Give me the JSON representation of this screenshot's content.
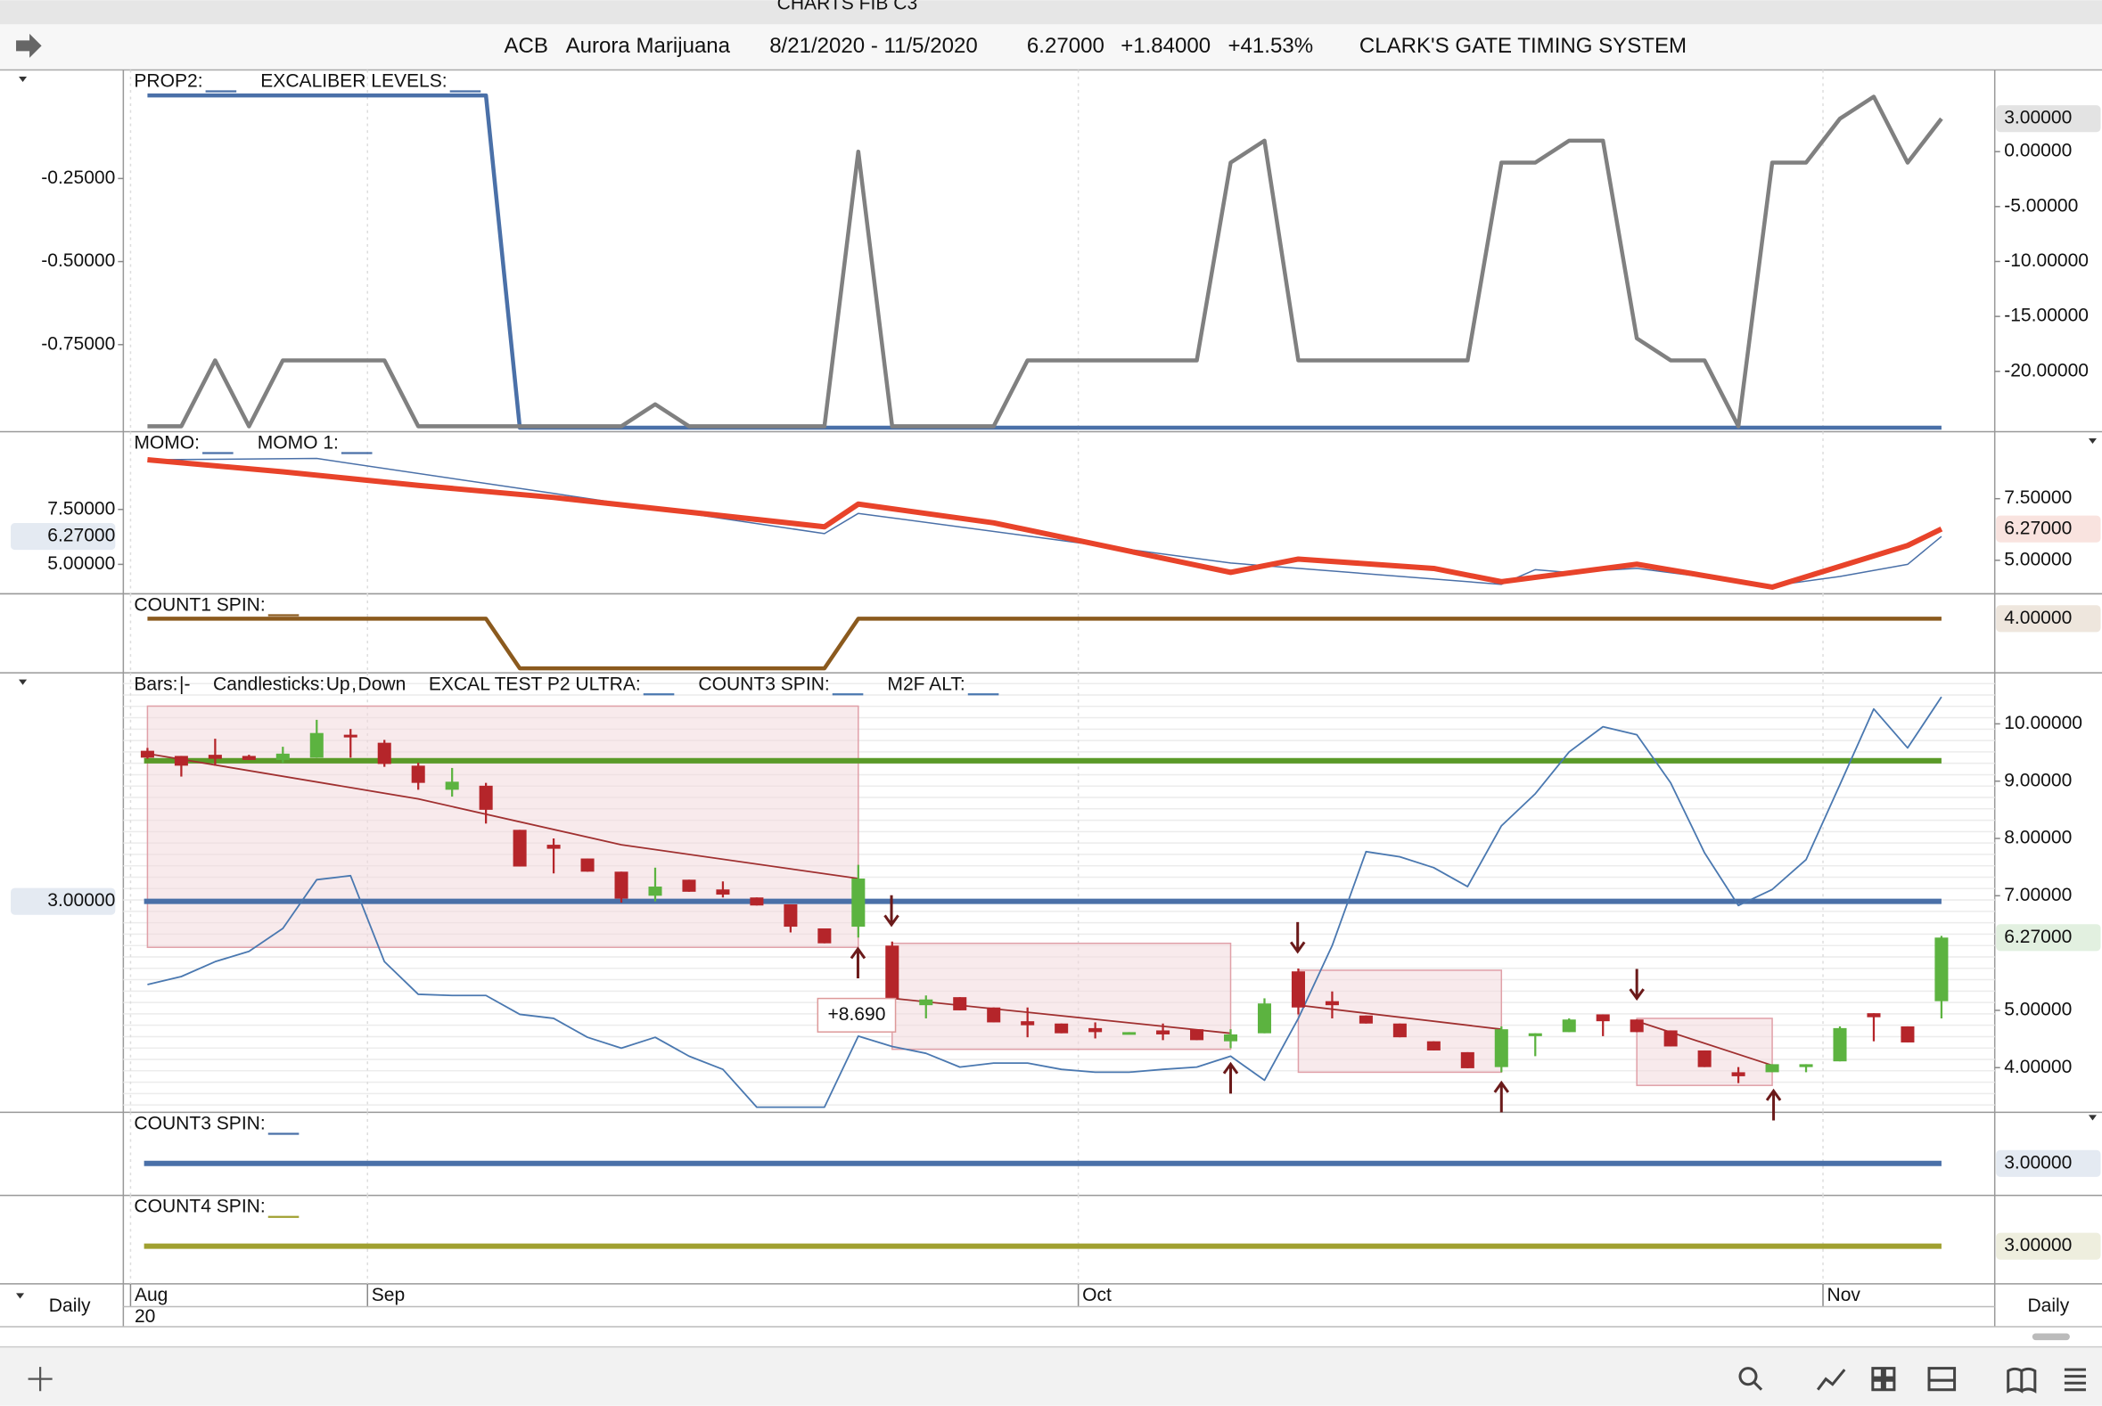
{
  "window_title": "CHARTS FIB C3",
  "header": {
    "symbol": "ACB",
    "name": "Aurora Marijuana",
    "range": "8/21/2020 - 11/5/2020",
    "last": "6.27000",
    "change": "+1.84000",
    "change_pct": "+41.53%",
    "system": "CLARK'S GATE TIMING SYSTEM"
  },
  "interval_left": "Daily",
  "interval_right": "Daily",
  "x_axis": {
    "ticks": [
      {
        "value": -0.5,
        "label": "Aug"
      },
      {
        "value": 6.5,
        "label": "Sep"
      },
      {
        "value": 27.5,
        "label": "Oct"
      },
      {
        "value": 49.5,
        "label": "Nov"
      }
    ],
    "sublabel": "20"
  },
  "panels": [
    {
      "legend": [
        {
          "parts": [
            {
              "text": "PROP2:"
            }
          ],
          "swatch": "#4a70a8"
        },
        {
          "parts": [
            {
              "text": "EXCALIBER LEVELS:"
            }
          ],
          "swatch": "#4a70a8"
        }
      ],
      "left_axis": {
        "ylim": [
          -1.012,
          0.077
        ],
        "ticks": [
          {
            "value": -0.25,
            "label": "-0.25000"
          },
          {
            "value": -0.5,
            "label": "-0.50000"
          },
          {
            "value": -0.75,
            "label": "-0.75000"
          }
        ]
      },
      "right_axis": {
        "ylim": [
          -25.49,
          7.44
        ],
        "ticks": [
          {
            "value": 0,
            "label": "0.00000"
          },
          {
            "value": -5,
            "label": "-5.00000"
          },
          {
            "value": -10,
            "label": "-10.00000"
          },
          {
            "value": -15,
            "label": "-15.00000"
          },
          {
            "value": -20,
            "label": "-20.00000"
          }
        ],
        "current": {
          "value": 3,
          "label": "3.00000",
          "color": "#444444"
        }
      },
      "series": [
        {
          "type": "line",
          "axis": "left",
          "color": "#4a70a8",
          "width": 3,
          "values": [
            0,
            0,
            0,
            0,
            0,
            0,
            0,
            0,
            0,
            0,
            0,
            -1,
            -1,
            -1,
            -1,
            -1,
            -1,
            -1,
            -1,
            -1,
            -1,
            -1,
            -1,
            -1,
            -1,
            -1,
            -1,
            -1,
            -1,
            -1,
            -1,
            -1,
            -1,
            -1,
            -1,
            -1,
            -1,
            -1,
            -1,
            -1,
            -1,
            -1,
            -1,
            -1,
            -1,
            -1,
            -1,
            -1,
            -1,
            -1,
            -1,
            -1,
            -1,
            -1
          ]
        },
        {
          "type": "line",
          "axis": "right",
          "color": "#808080",
          "width": 3,
          "values": [
            -25,
            -25,
            -19,
            -25,
            -19,
            -19,
            -19,
            -19,
            -25,
            -25,
            -25,
            -25,
            -25,
            -25,
            -25,
            -23,
            -25,
            -25,
            -25,
            -25,
            -25,
            0,
            -25,
            -25,
            -25,
            -25,
            -19,
            -19,
            -19,
            -19,
            -19,
            -19,
            -1,
            1,
            -19,
            -19,
            -19,
            -19,
            -19,
            -19,
            -1,
            -1,
            1,
            1,
            -17,
            -19,
            -19,
            -25,
            -1,
            -1,
            3,
            5,
            -1,
            3
          ]
        }
      ]
    },
    {
      "legend": [
        {
          "parts": [
            {
              "text": "MOMO:"
            }
          ],
          "swatch": "#4a70a8"
        },
        {
          "parts": [
            {
              "text": "MOMO 1:"
            }
          ],
          "swatch": "#4a70a8"
        }
      ],
      "left_axis": {
        "ylim": [
          3.66,
          11.04
        ],
        "ticks": [
          {
            "value": 7.5,
            "label": "7.50000"
          },
          {
            "value": 5,
            "label": "5.00000"
          }
        ],
        "current": {
          "value": 6.27,
          "label": "6.27000",
          "color": "#4a70a8"
        }
      },
      "right_axis": {
        "ylim": [
          3.64,
          10.22
        ],
        "ticks": [
          {
            "value": 7.5,
            "label": "7.50000"
          },
          {
            "value": 5,
            "label": "5.00000"
          }
        ],
        "current": {
          "value": 6.27,
          "label": "6.27000",
          "color": "#d8432a"
        }
      },
      "series": [
        {
          "type": "line",
          "axis": "left",
          "color": "#4a70a8",
          "width": 1,
          "x": [
            0,
            5,
            12,
            20,
            21,
            32,
            40,
            41,
            42,
            44,
            48,
            50,
            52,
            53
          ],
          "values": [
            9.76,
            9.82,
            8.23,
            6.4,
            7.32,
            5.06,
            4.09,
            4.76,
            4.63,
            4.82,
            4.02,
            4.45,
            5.0,
            6.27
          ]
        },
        {
          "type": "line",
          "axis": "right",
          "color": "#e8432a",
          "width": 4,
          "x": [
            0,
            4,
            8,
            12,
            20,
            21,
            25,
            32,
            34,
            38,
            40,
            44,
            48,
            52,
            53
          ],
          "values": [
            9.08,
            8.59,
            8.04,
            7.55,
            6.36,
            7.28,
            6.52,
            4.51,
            5.05,
            4.67,
            4.13,
            4.84,
            3.91,
            5.6,
            6.27
          ]
        }
      ]
    },
    {
      "legend": [
        {
          "parts": [
            {
              "text": "COUNT1 SPIN:"
            }
          ],
          "swatch": "#8b5a1e"
        }
      ],
      "right_axis": {
        "ylim": [
          2.91,
          4.5
        ],
        "ticks": [],
        "current": {
          "value": 4,
          "label": "4.00000",
          "color": "#8b5a1e"
        }
      },
      "series": [
        {
          "type": "line",
          "axis": "right",
          "color": "#8b5a1e",
          "width": 3,
          "values": [
            4,
            4,
            4,
            4,
            4,
            4,
            4,
            4,
            4,
            4,
            4,
            3,
            3,
            3,
            3,
            3,
            3,
            3,
            3,
            3,
            3,
            4,
            4,
            4,
            4,
            4,
            4,
            4,
            4,
            4,
            4,
            4,
            4,
            4,
            4,
            4,
            4,
            4,
            4,
            4,
            4,
            4,
            4,
            4,
            4,
            4,
            4,
            4,
            4,
            4,
            4,
            4,
            4,
            4
          ]
        }
      ]
    },
    {
      "legend": [
        {
          "parts": [
            {
              "text": "Bars:"
            },
            {
              "text": "|-"
            }
          ]
        },
        {
          "parts": [
            {
              "text": "Candlesticks:"
            },
            {
              "text": "Up",
              "color": "#3c9c2c"
            },
            {
              "text": ","
            },
            {
              "text": "Down",
              "color": "#c0392b"
            }
          ]
        },
        {
          "parts": [
            {
              "text": "EXCAL TEST P2 ULTRA:"
            }
          ],
          "swatch": "#4a78b0"
        },
        {
          "parts": [
            {
              "text": "COUNT3 SPIN:"
            }
          ],
          "swatch": "#4a78b0"
        },
        {
          "parts": [
            {
              "text": "M2F ALT:"
            }
          ],
          "swatch": "#4a78b0"
        }
      ],
      "left_axis": {
        "ylim": [
          0,
          6.25
        ],
        "ticks": [],
        "current": {
          "value": 3,
          "label": "3.00000",
          "color": "#4a70a8"
        }
      },
      "right_axis": {
        "ylim": [
          3.22,
          10.89
        ],
        "ticks": [
          {
            "value": 10,
            "label": "10.00000"
          },
          {
            "value": 9,
            "label": "9.00000"
          },
          {
            "value": 8,
            "label": "8.00000"
          },
          {
            "value": 7,
            "label": "7.00000"
          },
          {
            "value": 5,
            "label": "5.00000"
          },
          {
            "value": 4,
            "label": "4.00000"
          }
        ],
        "current": {
          "value": 6.27,
          "label": "6.27000",
          "color": "#3c9c2c"
        }
      },
      "zones": [
        {
          "x": [
            0,
            21
          ],
          "y": [
            10.31,
            6.1
          ]
        },
        {
          "x": [
            22,
            32
          ],
          "y": [
            6.17,
            4.32
          ]
        },
        {
          "x": [
            34,
            40
          ],
          "y": [
            5.7,
            3.92
          ]
        },
        {
          "x": [
            44,
            48
          ],
          "y": [
            4.86,
            3.69
          ]
        }
      ],
      "series": [
        {
          "type": "level",
          "axis": "left",
          "color": "#5a9a28",
          "width": 4,
          "level": 5
        },
        {
          "type": "level",
          "axis": "left",
          "color": "#4a70a8",
          "width": 4,
          "level": 3
        },
        {
          "type": "line",
          "axis": "right",
          "color": "#4a78b0",
          "width": 1.2,
          "values": [
            5.45,
            5.59,
            5.85,
            6.03,
            6.43,
            7.28,
            7.35,
            5.85,
            5.28,
            5.26,
            5.26,
            4.93,
            4.86,
            4.53,
            4.34,
            4.53,
            4.2,
            3.97,
            3.31,
            3.31,
            3.31,
            4.55,
            4.37,
            4.25,
            4.01,
            4.08,
            4.08,
            3.97,
            3.92,
            3.92,
            3.97,
            4.01,
            4.2,
            3.78,
            4.86,
            6.13,
            7.77,
            7.68,
            7.49,
            7.16,
            8.22,
            8.78,
            9.51,
            9.95,
            9.81,
            8.97,
            7.75,
            6.83,
            7.11,
            7.63,
            8.94,
            10.26,
            9.58,
            10.47
          ]
        },
        {
          "type": "segments",
          "axis": "right",
          "color": "#a03030",
          "width": 1.2,
          "segments": [
            {
              "x": [
                0,
                8,
                14,
                21
              ],
              "values": [
                9.48,
                8.69,
                7.89,
                7.3
              ]
            },
            {
              "x": [
                22,
                32
              ],
              "values": [
                5.21,
                4.6
              ]
            },
            {
              "x": [
                34,
                40
              ],
              "values": [
                5.09,
                4.67
              ]
            },
            {
              "x": [
                44,
                48
              ],
              "values": [
                4.81,
                4.04
              ]
            }
          ]
        },
        {
          "type": "candles",
          "axis": "right",
          "up_color": "#5cb340",
          "down_color": "#b5252a",
          "open": [
            9.53,
            9.44,
            9.46,
            9.44,
            9.37,
            9.41,
            9.81,
            9.67,
            9.27,
            8.85,
            8.92,
            8.15,
            7.89,
            7.65,
            7.42,
            7.0,
            7.28,
            7.11,
            6.97,
            6.85,
            6.43,
            6.46,
            6.13,
            5.09,
            5.23,
            5.05,
            4.81,
            4.77,
            4.69,
            4.58,
            4.65,
            4.67,
            4.46,
            4.6,
            5.68,
            5.16,
            4.91,
            4.77,
            4.46,
            4.27,
            4.01,
            4.55,
            4.62,
            4.93,
            4.84,
            4.65,
            4.3,
            3.92,
            3.92,
            4.01,
            4.11,
            4.95,
            4.72,
            5.16
          ],
          "high": [
            9.58,
            9.44,
            9.74,
            9.46,
            9.6,
            10.07,
            9.91,
            9.72,
            9.32,
            9.23,
            8.97,
            8.15,
            8.0,
            7.65,
            7.42,
            7.49,
            7.28,
            7.25,
            6.97,
            6.85,
            6.43,
            7.54,
            6.2,
            5.26,
            5.23,
            5.05,
            5.05,
            4.77,
            4.79,
            4.62,
            4.77,
            4.67,
            4.67,
            5.21,
            5.73,
            5.33,
            4.91,
            4.77,
            4.46,
            4.27,
            4.72,
            4.6,
            4.86,
            4.93,
            4.84,
            4.65,
            4.3,
            4.01,
            4.06,
            4.06,
            4.72,
            4.95,
            4.72,
            6.3
          ],
          "low": [
            9.39,
            9.08,
            9.27,
            9.37,
            9.32,
            9.41,
            9.41,
            9.25,
            8.85,
            8.73,
            8.26,
            7.51,
            7.39,
            7.42,
            6.88,
            6.9,
            7.07,
            6.97,
            6.83,
            6.36,
            6.17,
            6.27,
            5.14,
            4.86,
            5.0,
            4.79,
            4.53,
            4.6,
            4.51,
            4.58,
            4.48,
            4.48,
            4.34,
            4.6,
            4.93,
            4.86,
            4.77,
            4.53,
            4.3,
            3.99,
            3.92,
            4.2,
            4.62,
            4.55,
            4.62,
            4.37,
            4.01,
            3.73,
            3.92,
            3.92,
            4.11,
            4.46,
            4.44,
            4.86
          ],
          "close": [
            9.41,
            9.27,
            9.39,
            9.37,
            9.48,
            9.84,
            9.77,
            9.3,
            8.97,
            8.99,
            8.5,
            7.51,
            7.82,
            7.42,
            6.95,
            7.16,
            7.07,
            7.02,
            6.83,
            6.46,
            6.17,
            7.3,
            5.21,
            5.19,
            5.0,
            4.79,
            4.74,
            4.6,
            4.62,
            4.62,
            4.58,
            4.48,
            4.58,
            5.12,
            5.05,
            5.09,
            4.77,
            4.53,
            4.3,
            3.99,
            4.67,
            4.6,
            4.84,
            4.81,
            4.62,
            4.37,
            4.01,
            3.85,
            4.06,
            4.06,
            4.69,
            4.88,
            4.44,
            6.27
          ]
        }
      ],
      "annotations": [
        {
          "text": "+8.690"
        }
      ]
    },
    {
      "legend": [
        {
          "parts": [
            {
              "text": "COUNT3 SPIN:"
            }
          ],
          "swatch": "#4a70a8"
        }
      ],
      "right_axis": {
        "ylim": [
          2,
          4.6
        ],
        "ticks": [],
        "current": {
          "value": 3,
          "label": "3.00000",
          "color": "#4a70a8"
        }
      },
      "series": [
        {
          "type": "level",
          "axis": "right",
          "color": "#4a70a8",
          "width": 4,
          "level": 3
        }
      ]
    },
    {
      "legend": [
        {
          "parts": [
            {
              "text": "COUNT4 SPIN:"
            }
          ],
          "swatch": "#a0a030"
        }
      ],
      "right_axis": {
        "ylim": [
          2,
          4.35
        ],
        "ticks": [],
        "current": {
          "value": 3,
          "label": "3.00000",
          "color": "#8a8a20"
        }
      },
      "series": [
        {
          "type": "level",
          "axis": "right",
          "color": "#a0a030",
          "width": 4,
          "level": 3
        }
      ]
    }
  ]
}
